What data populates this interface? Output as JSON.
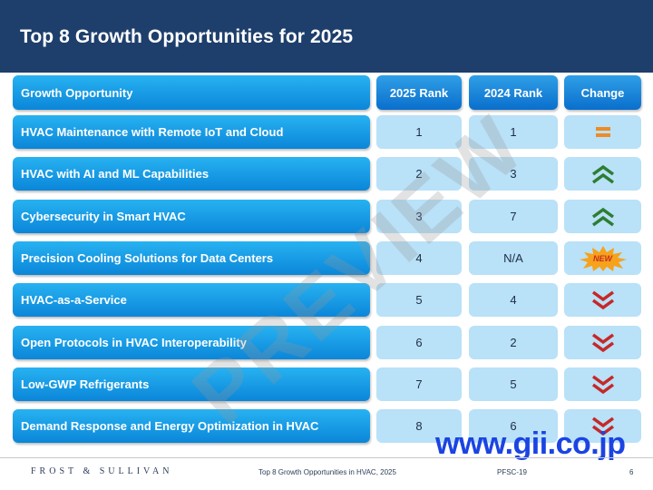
{
  "title": "Top 8 Growth Opportunities for 2025",
  "table": {
    "headers": {
      "opportunity": "Growth Opportunity",
      "rank2025": "2025 Rank",
      "rank2024": "2024 Rank",
      "change": "Change"
    },
    "rows": [
      {
        "name": "HVAC Maintenance with Remote IoT and Cloud",
        "rank2025": "1",
        "rank2024": "1",
        "change": "same"
      },
      {
        "name": "HVAC with AI and ML Capabilities",
        "rank2025": "2",
        "rank2024": "3",
        "change": "up"
      },
      {
        "name": "Cybersecurity in Smart HVAC",
        "rank2025": "3",
        "rank2024": "7",
        "change": "up"
      },
      {
        "name": "Precision Cooling Solutions for Data Centers",
        "rank2025": "4",
        "rank2024": "N/A",
        "change": "new"
      },
      {
        "name": "HVAC-as-a-Service",
        "rank2025": "5",
        "rank2024": "4",
        "change": "down"
      },
      {
        "name": "Open Protocols in HVAC Interoperability",
        "rank2025": "6",
        "rank2024": "2",
        "change": "down"
      },
      {
        "name": "Low-GWP Refrigerants",
        "rank2025": "7",
        "rank2024": "5",
        "change": "down"
      },
      {
        "name": "Demand Response and Energy Optimization in HVAC",
        "rank2025": "8",
        "rank2024": "6",
        "change": "down"
      }
    ],
    "new_label": "NEW"
  },
  "watermark": "PREVIEW",
  "site_watermark": "www.gii.co.jp",
  "footer": {
    "brand": "FROST & SULLIVAN",
    "doc_title": "Top 8 Growth Opportunities in HVAC, 2025",
    "code": "PFSC-19",
    "page": "6"
  },
  "colors": {
    "header_bg": "#1e3f6c",
    "up": "#2e7d32",
    "down": "#c62828",
    "same": "#f08a24"
  }
}
